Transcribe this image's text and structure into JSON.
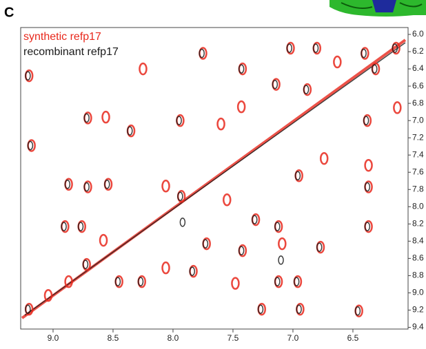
{
  "chart_data": {
    "type": "scatter",
    "panel_label": "C",
    "series": [
      {
        "name": "synthetic refp17",
        "color": "#e8281c",
        "x": [
          9.2,
          9.2,
          8.25,
          7.75,
          7.02,
          6.8,
          6.4,
          6.14,
          7.42,
          7.14,
          6.88,
          6.63,
          6.31,
          8.71,
          8.56,
          8.35,
          7.94,
          7.6,
          6.38,
          6.13,
          9.18,
          8.87,
          8.71,
          8.54,
          8.06,
          7.93,
          6.95,
          6.74,
          6.37,
          6.37,
          8.9,
          8.76,
          7.55,
          7.31,
          7.12,
          6.37,
          7.72,
          7.42,
          7.09,
          6.77,
          8.72,
          8.87,
          8.45,
          8.26,
          7.48,
          7.12,
          6.96,
          7.26,
          6.94,
          6.45,
          8.06,
          7.83,
          9.04,
          8.58,
          7.43
        ],
        "values": [
          6.48,
          9.19,
          6.4,
          6.22,
          6.16,
          6.16,
          6.22,
          6.16,
          6.4,
          6.58,
          6.64,
          6.32,
          6.4,
          6.97,
          6.96,
          7.12,
          7.0,
          7.04,
          7.0,
          6.85,
          7.29,
          7.74,
          7.77,
          7.74,
          7.76,
          7.88,
          7.64,
          7.44,
          7.52,
          7.77,
          8.23,
          8.23,
          7.92,
          8.15,
          8.23,
          8.23,
          8.43,
          8.51,
          8.43,
          8.47,
          8.67,
          8.87,
          8.87,
          8.87,
          8.89,
          8.87,
          8.87,
          9.19,
          9.19,
          9.21,
          8.71,
          8.75,
          9.03,
          8.39,
          6.84
        ]
      },
      {
        "name": "recombinant refp17",
        "color": "#1a1a1a",
        "x": [
          9.21,
          9.21,
          7.76,
          7.03,
          6.81,
          6.41,
          6.15,
          7.43,
          7.15,
          6.89,
          6.32,
          8.72,
          8.36,
          7.95,
          6.39,
          9.19,
          8.88,
          8.72,
          8.55,
          7.94,
          6.96,
          6.38,
          8.91,
          8.77,
          7.32,
          7.13,
          6.38,
          7.73,
          7.43,
          6.78,
          8.73,
          8.46,
          8.27,
          7.13,
          6.97,
          7.27,
          6.95,
          6.46,
          7.84,
          7.1,
          7.92
        ],
        "values": [
          6.48,
          9.19,
          6.22,
          6.16,
          6.16,
          6.22,
          6.16,
          6.4,
          6.58,
          6.64,
          6.4,
          6.97,
          7.12,
          7.0,
          7.0,
          7.29,
          7.74,
          7.77,
          7.74,
          7.88,
          7.64,
          7.77,
          8.23,
          8.23,
          8.15,
          8.23,
          8.23,
          8.43,
          8.51,
          8.47,
          8.67,
          8.87,
          8.87,
          8.87,
          8.87,
          9.19,
          9.19,
          9.21,
          8.75,
          8.62,
          8.18
        ]
      }
    ],
    "xlim": [
      9.27,
      6.04
    ],
    "ylim": [
      9.42,
      5.92
    ],
    "xticks": [
      {
        "value": 9,
        "label": "9.0"
      },
      {
        "value": 8.5,
        "label": "8.5"
      },
      {
        "value": 8,
        "label": "8.0"
      },
      {
        "value": 7.5,
        "label": "7.5"
      },
      {
        "value": 7,
        "label": "7.0"
      },
      {
        "value": 6.5,
        "label": "6.5"
      }
    ],
    "yticks": [
      {
        "value": 6,
        "label": "6.0"
      },
      6.2,
      6.4,
      6.6,
      6.8,
      {
        "value": 7,
        "label": "7.0"
      },
      7.2,
      7.4,
      7.6,
      7.8,
      {
        "value": 8,
        "label": "8.0"
      },
      8.2,
      8.4,
      8.6,
      8.8,
      {
        "value": 9,
        "label": "9.0"
      },
      9.2,
      9.4
    ],
    "legend": "upper left"
  }
}
